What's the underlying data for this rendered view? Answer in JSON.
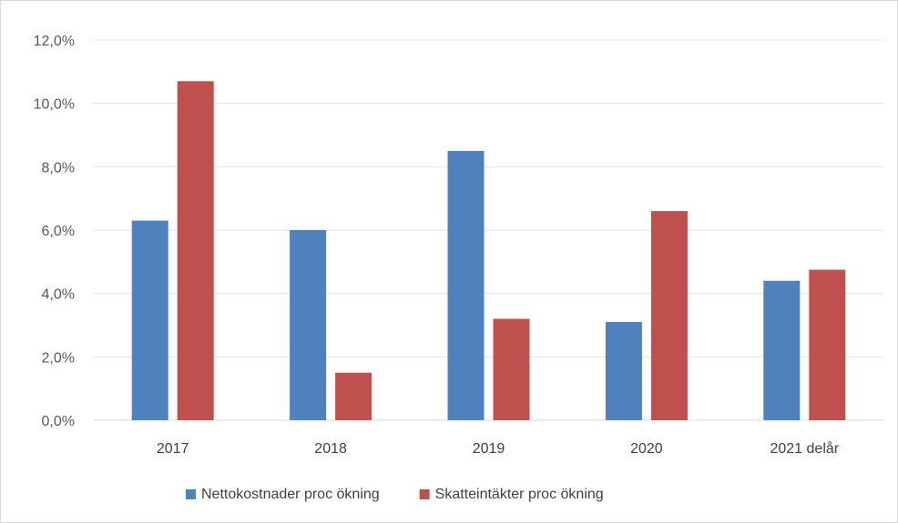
{
  "chart_data": {
    "type": "bar",
    "title": "",
    "xlabel": "",
    "ylabel": "",
    "categories": [
      "2017",
      "2018",
      "2019",
      "2020",
      "2021 delår"
    ],
    "series": [
      {
        "name": "Nettokostnader proc ökning",
        "color": "#4F81BD",
        "values": [
          6.3,
          6.0,
          8.5,
          3.1,
          4.4
        ]
      },
      {
        "name": "Skatteintäkter proc ökning",
        "color": "#C0504D",
        "values": [
          10.7,
          1.5,
          3.2,
          6.6,
          4.75
        ]
      }
    ],
    "ylim": [
      0,
      12
    ],
    "y_ticks": [
      "0,0%",
      "2,0%",
      "4,0%",
      "6,0%",
      "8,0%",
      "10,0%",
      "12,0%"
    ],
    "grid": true,
    "legend_position": "bottom"
  }
}
